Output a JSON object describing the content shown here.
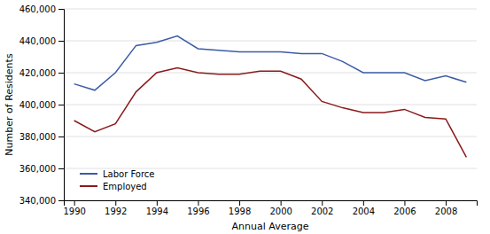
{
  "chart_data": {
    "type": "line",
    "xlabel": "Annual Average",
    "ylabel": "Number of Residents",
    "x": [
      1990,
      1991,
      1992,
      1993,
      1994,
      1995,
      1996,
      1997,
      1998,
      1999,
      2000,
      2001,
      2002,
      2003,
      2004,
      2005,
      2006,
      2007,
      2008,
      2009
    ],
    "series": [
      {
        "name": "Labor Force",
        "color": "#3B5BA5",
        "values": [
          413000,
          409000,
          420000,
          437000,
          439000,
          443000,
          435000,
          434000,
          433000,
          433000,
          433000,
          432000,
          432000,
          427000,
          420000,
          420000,
          420000,
          415000,
          418000,
          414000
        ]
      },
      {
        "name": "Employed",
        "color": "#8B1A1A",
        "values": [
          390000,
          383000,
          388000,
          408000,
          420000,
          423000,
          420000,
          419000,
          419000,
          421000,
          421000,
          416000,
          402000,
          398000,
          395000,
          395000,
          397000,
          392000,
          391000,
          367000
        ]
      }
    ],
    "xlim": [
      1989.5,
      2009.5
    ],
    "xticks": [
      1990,
      1992,
      1994,
      1996,
      1998,
      2000,
      2002,
      2004,
      2006,
      2008
    ],
    "ylim": [
      340000,
      460000
    ],
    "yticks": [
      {
        "value": 340000,
        "label": "340,000"
      },
      {
        "value": 360000,
        "label": "360,000"
      },
      {
        "value": 380000,
        "label": "380,000"
      },
      {
        "value": 400000,
        "label": "400,000"
      },
      {
        "value": 420000,
        "label": "420,000"
      },
      {
        "value": 440000,
        "label": "440,000"
      },
      {
        "value": 460000,
        "label": "460,000"
      }
    ],
    "grid": "y",
    "legend": "lower left"
  }
}
